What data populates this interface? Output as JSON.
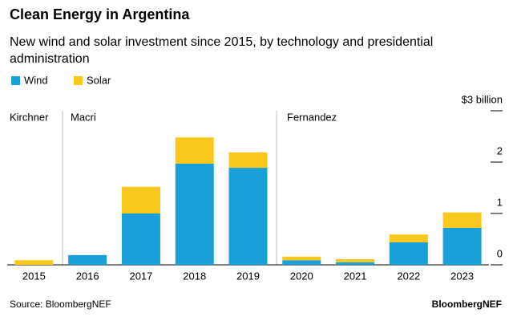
{
  "chart_data": {
    "type": "stacked-bar",
    "title": "Clean Energy in Argentina",
    "subtitle": "New wind and solar investment since 2015, by technology and presidential administration",
    "categories": [
      "2015",
      "2016",
      "2017",
      "2018",
      "2019",
      "2020",
      "2021",
      "2022",
      "2023"
    ],
    "series": [
      {
        "name": "Wind",
        "color": "#1a9fd9",
        "values": [
          0,
          0.19,
          1.0,
          1.97,
          1.89,
          0.09,
          0.05,
          0.44,
          0.72
        ]
      },
      {
        "name": "Solar",
        "color": "#f8c81c",
        "values": [
          0.09,
          0,
          0.52,
          0.51,
          0.3,
          0.07,
          0.06,
          0.15,
          0.3
        ]
      }
    ],
    "ylim": [
      0,
      3
    ],
    "yticks": [
      0,
      1,
      2,
      {
        "value": 3,
        "label": "$3 billion"
      }
    ],
    "administrations": [
      "Kirchner",
      "Macri",
      "Fernandez"
    ],
    "source": "Source: BloombergNEF",
    "brand": "BloombergNEF"
  }
}
